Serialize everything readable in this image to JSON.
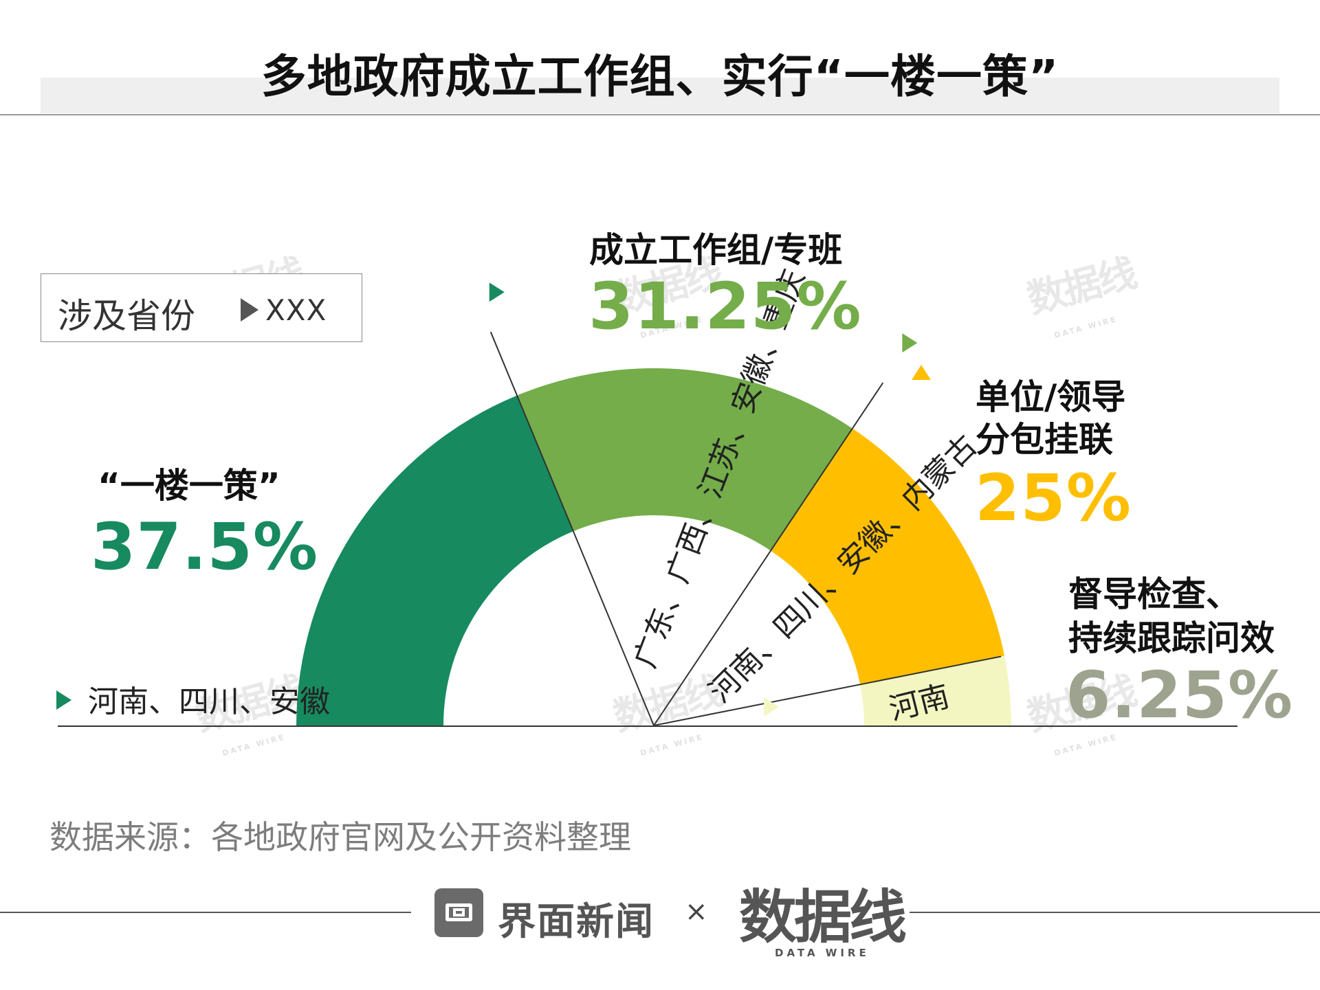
{
  "title": "多地政府成立工作组、实行“一楼一策”",
  "legend": {
    "label": "涉及省份",
    "sample": "XXX"
  },
  "source": "数据来源：各地政府官网及公开资料整理",
  "footer": {
    "jiemian": "界面新闻",
    "cross": "×",
    "brand": "数据线",
    "brand_sub": "DATA WIRE"
  },
  "watermark": {
    "brand": "数据线",
    "sub": "DATA WIRE"
  },
  "chart_data": {
    "type": "pie",
    "style": "half-donut",
    "slices": [
      {
        "name": "“一楼一策”",
        "value": 37.5,
        "label": "37.5%",
        "color": "#178a60",
        "provinces": "河南、四川、安徽"
      },
      {
        "name": "成立工作组/专班",
        "value": 31.25,
        "label": "31.25%",
        "color": "#74ad4a",
        "provinces": "广东、广西、江苏、安徽、重庆"
      },
      {
        "name": "单位/领导分包挂联",
        "value": 25,
        "label": "25%",
        "color": "#ffbf00",
        "provinces": "河南、四川、安徽、内蒙古"
      },
      {
        "name": "督导检查、持续跟踪问效",
        "value": 6.25,
        "label": "6.25%",
        "color": "#f4f6c2",
        "label_color": "#9ea38f",
        "provinces": "河南"
      }
    ]
  },
  "labels": {
    "cat1_line1": "“一楼一策”",
    "cat2_line1": "成立工作组/专班",
    "cat3_line1": "单位/领导",
    "cat3_line2": "分包挂联",
    "cat4_line1": "督导检查、",
    "cat4_line2": "持续跟踪问效"
  }
}
